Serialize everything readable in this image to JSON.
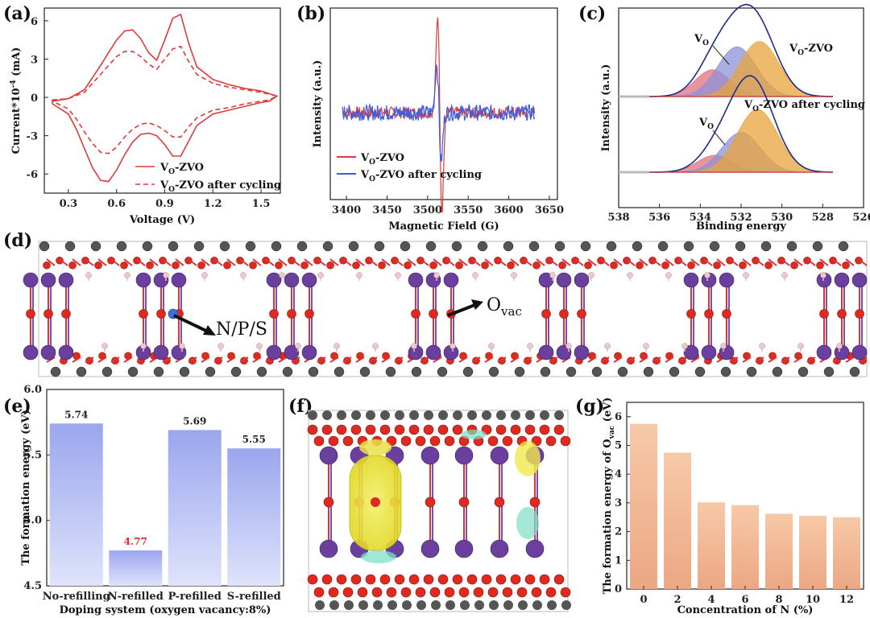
{
  "panels": {
    "a": {
      "label": "(a)"
    },
    "b": {
      "label": "(b)"
    },
    "c": {
      "label": "(c)"
    },
    "d": {
      "label": "(d)"
    },
    "e": {
      "label": "(e)"
    },
    "f": {
      "label": "(f)"
    },
    "g": {
      "label": "(g)"
    }
  },
  "colors": {
    "red": "#e03a3a",
    "blue": "#3a5fe0",
    "gold": "#e8a43c",
    "lavender": "#8d92d6",
    "pink": "#e0707e",
    "navy": "#1f2a8c",
    "bar_e": "#a4aef0",
    "bar_g": "#f3bb98",
    "o_atom": "#e02a20",
    "v_atom": "#6a3f9e",
    "c_atom": "#555555",
    "h_atom": "#f0c8cc"
  },
  "structure": {
    "dopant_label": "N/P/S",
    "vacancy_label": "O",
    "vacancy_sub": "vac"
  },
  "chart_data": [
    {
      "id": "a",
      "type": "line",
      "xlabel": "Voltage (V)",
      "ylabel": "Current*10",
      "ylabel_sup": "-4",
      "ylabel_unit": " (mA)",
      "xlim": [
        0.15,
        1.62
      ],
      "ylim": [
        -7.5,
        7.0
      ],
      "xticks": [
        "0.3",
        "0.6",
        "0.9",
        "1.2",
        "1.5"
      ],
      "xtick_values": [
        0.3,
        0.6,
        0.9,
        1.2,
        1.5
      ],
      "yticks": [
        "-6",
        "-3",
        "0",
        "3",
        "6"
      ],
      "ytick_values": [
        -6,
        -3,
        0,
        3,
        6
      ],
      "legend_position": "bottom-right",
      "series": [
        {
          "name": "V",
          "name_sub": "O",
          "name_rest": "-ZVO",
          "style": "solid",
          "x": [
            0.2,
            0.3,
            0.4,
            0.5,
            0.6,
            0.65,
            0.7,
            0.75,
            0.8,
            0.85,
            0.9,
            0.95,
            1.0,
            1.05,
            1.1,
            1.2,
            1.3,
            1.4,
            1.5,
            1.6,
            1.55,
            1.5,
            1.4,
            1.3,
            1.2,
            1.1,
            1.05,
            1.0,
            0.95,
            0.9,
            0.85,
            0.8,
            0.75,
            0.7,
            0.65,
            0.6,
            0.55,
            0.5,
            0.45,
            0.4,
            0.35,
            0.3,
            0.2
          ],
          "y": [
            -0.3,
            -0.1,
            0.6,
            2.5,
            4.5,
            5.2,
            5.3,
            4.6,
            3.5,
            2.9,
            4.5,
            6.2,
            6.5,
            4.2,
            2.4,
            1.4,
            1.0,
            0.7,
            0.5,
            0.1,
            -0.3,
            -0.4,
            -0.7,
            -1.0,
            -1.3,
            -2.2,
            -3.4,
            -4.6,
            -4.6,
            -3.7,
            -3.0,
            -2.8,
            -2.9,
            -3.5,
            -4.5,
            -5.7,
            -6.6,
            -6.5,
            -5.5,
            -4.0,
            -2.5,
            -1.3,
            -0.5
          ]
        },
        {
          "name": "V",
          "name_sub": "O",
          "name_rest": "-ZVO after cycling",
          "style": "dashed",
          "x": [
            0.2,
            0.3,
            0.4,
            0.5,
            0.6,
            0.65,
            0.7,
            0.75,
            0.8,
            0.85,
            0.9,
            0.95,
            1.0,
            1.05,
            1.1,
            1.2,
            1.3,
            1.4,
            1.5,
            1.6,
            1.55,
            1.5,
            1.4,
            1.3,
            1.2,
            1.1,
            1.05,
            1.0,
            0.95,
            0.9,
            0.85,
            0.8,
            0.75,
            0.7,
            0.65,
            0.6,
            0.55,
            0.5,
            0.45,
            0.4,
            0.35,
            0.3,
            0.2
          ],
          "y": [
            -0.2,
            -0.1,
            0.4,
            1.8,
            3.2,
            3.6,
            3.6,
            3.2,
            2.6,
            2.2,
            3.0,
            3.8,
            4.0,
            2.8,
            1.8,
            1.1,
            0.8,
            0.6,
            0.4,
            0.1,
            -0.2,
            -0.3,
            -0.5,
            -0.8,
            -1.0,
            -1.6,
            -2.3,
            -3.1,
            -3.1,
            -2.6,
            -2.2,
            -2.0,
            -2.1,
            -2.5,
            -3.1,
            -3.9,
            -4.4,
            -4.3,
            -3.6,
            -2.7,
            -1.7,
            -0.9,
            -0.3
          ]
        }
      ]
    },
    {
      "id": "b",
      "type": "line",
      "xlabel": "Magnetic Field (G)",
      "ylabel": "Intensity (a.u.)",
      "xlim": [
        3380,
        3660
      ],
      "xticks": [
        "3400",
        "3450",
        "3500",
        "3550",
        "3600",
        "3650"
      ],
      "xtick_values": [
        3400,
        3450,
        3500,
        3550,
        3600,
        3650
      ],
      "legend_position": "bottom-left",
      "series": [
        {
          "name": "V",
          "name_sub": "O",
          "name_rest": "-ZVO",
          "center": 3515,
          "amplitude": 1.0,
          "noise": 0.03
        },
        {
          "name": "V",
          "name_sub": "O",
          "name_rest": "-ZVO after cycling",
          "center": 3514,
          "amplitude": 0.5,
          "noise": 0.04
        }
      ]
    },
    {
      "id": "c",
      "type": "area",
      "xlabel": "Binding energy",
      "ylabel": "Intensity (a.u.)",
      "xlim": [
        538,
        526
      ],
      "x_reversed": true,
      "xticks": [
        "538",
        "536",
        "534",
        "532",
        "530",
        "528",
        "526"
      ],
      "xtick_values": [
        538,
        536,
        534,
        532,
        530,
        528,
        526
      ],
      "top_label": {
        "main": "V",
        "sub": "O",
        "rest": "-ZVO"
      },
      "bottom_label": {
        "main": "V",
        "sub": "O",
        "rest": "-ZVO after cycling"
      },
      "vo_label": {
        "main": "V",
        "sub": "O"
      },
      "spectra": [
        {
          "name": "VO-ZVO",
          "peaks": [
            {
              "center": 533.4,
              "height": 0.35,
              "width": 0.85,
              "color": "pink"
            },
            {
              "center": 532.2,
              "height": 0.65,
              "width": 0.95,
              "color": "lavender"
            },
            {
              "center": 531.1,
              "height": 0.72,
              "width": 0.95,
              "color": "gold"
            }
          ]
        },
        {
          "name": "VO-ZVO after cycling",
          "peaks": [
            {
              "center": 533.3,
              "height": 0.22,
              "width": 0.85,
              "color": "pink"
            },
            {
              "center": 532.0,
              "height": 0.52,
              "width": 0.95,
              "color": "lavender"
            },
            {
              "center": 531.2,
              "height": 0.82,
              "width": 1.0,
              "color": "gold"
            }
          ]
        }
      ]
    },
    {
      "id": "e",
      "type": "bar",
      "xlabel": "Doping system (oxygen vacancy:8%)",
      "ylabel": "The formation energy (eV)",
      "categories": [
        "No-refilling",
        "N-refilled",
        "P-refilled",
        "S-refilled"
      ],
      "values": [
        5.74,
        4.77,
        5.69,
        5.55
      ],
      "value_labels": [
        "5.74",
        "4.77",
        "5.69",
        "5.55"
      ],
      "highlight_index": 1,
      "ylim": [
        4.5,
        6.0
      ],
      "yticks": [
        "4.5",
        "5.0",
        "5.5",
        "6.0"
      ],
      "ytick_values": [
        4.5,
        5.0,
        5.5,
        6.0
      ]
    },
    {
      "id": "g",
      "type": "bar",
      "xlabel": "Concentration of N (%)",
      "ylabel": "The formation energy of O",
      "ylabel_sub": "vac",
      "ylabel_unit": " (eV)",
      "categories": [
        "0",
        "2",
        "4",
        "6",
        "8",
        "10",
        "12"
      ],
      "values": [
        5.75,
        4.75,
        3.02,
        2.92,
        2.62,
        2.55,
        2.5
      ],
      "ylim": [
        0,
        6.5
      ],
      "yticks": [
        "0",
        "1",
        "2",
        "3",
        "4",
        "5",
        "6"
      ],
      "ytick_values": [
        0,
        1,
        2,
        3,
        4,
        5,
        6
      ]
    }
  ]
}
